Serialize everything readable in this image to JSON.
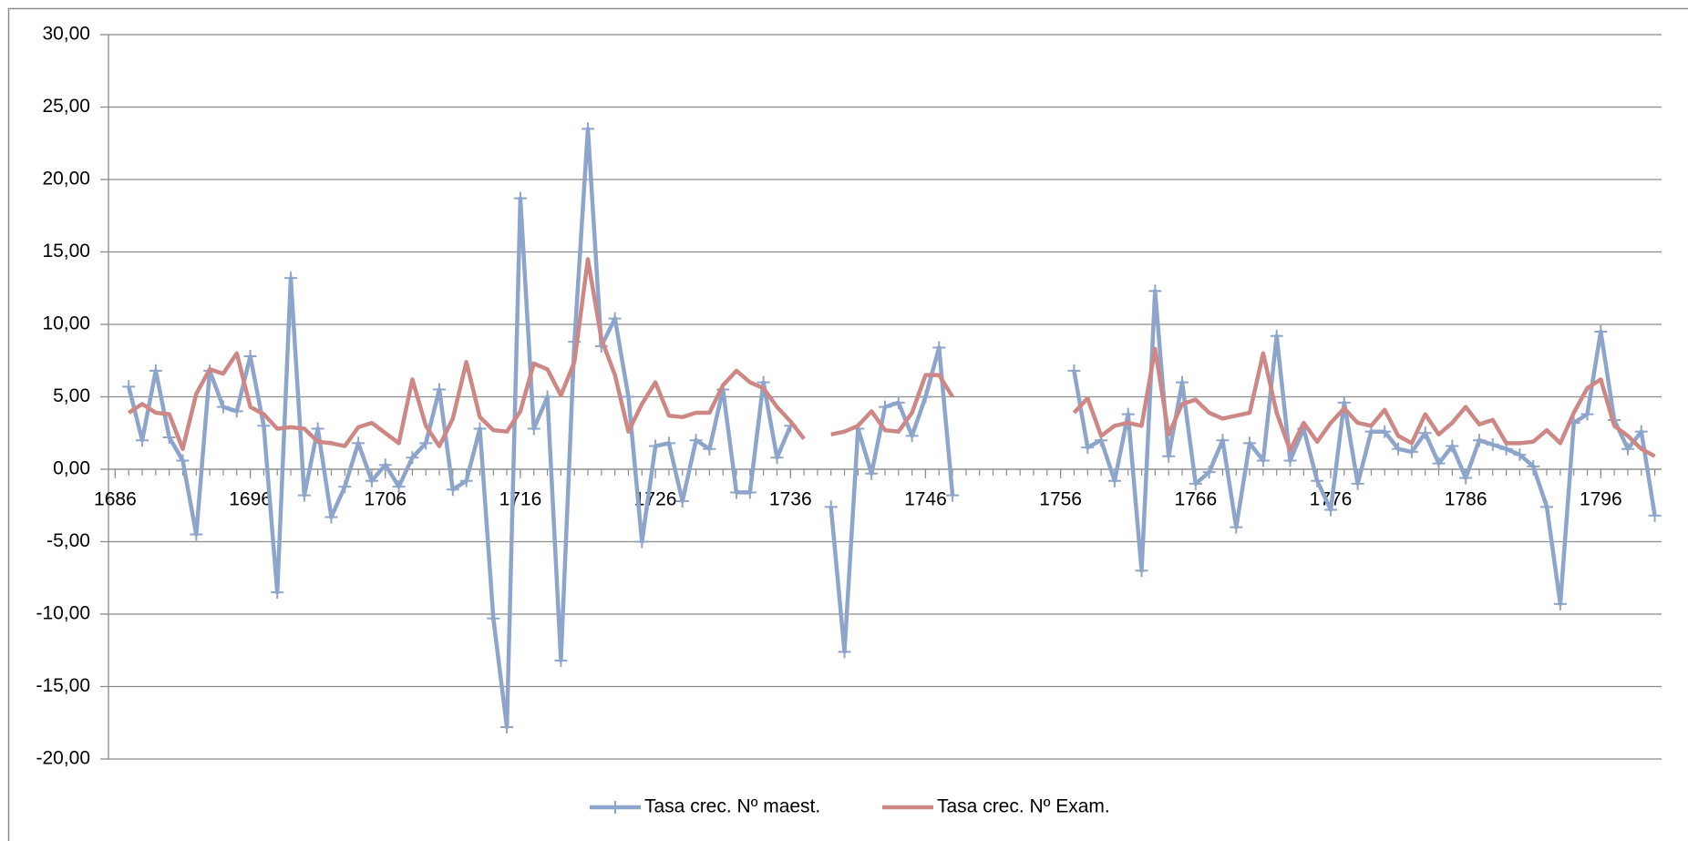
{
  "chart_data": {
    "type": "line",
    "x": [
      1686,
      1687,
      1688,
      1689,
      1690,
      1691,
      1692,
      1693,
      1694,
      1695,
      1696,
      1697,
      1698,
      1699,
      1700,
      1701,
      1702,
      1703,
      1704,
      1705,
      1706,
      1707,
      1708,
      1709,
      1710,
      1711,
      1712,
      1713,
      1714,
      1715,
      1716,
      1717,
      1718,
      1719,
      1720,
      1721,
      1722,
      1723,
      1724,
      1725,
      1726,
      1727,
      1728,
      1729,
      1730,
      1731,
      1732,
      1733,
      1734,
      1735,
      1736,
      1737,
      1738,
      1739,
      1740,
      1741,
      1742,
      1743,
      1744,
      1745,
      1746,
      1747,
      1748,
      1749,
      1750,
      1751,
      1752,
      1753,
      1754,
      1755,
      1756,
      1757,
      1758,
      1759,
      1760,
      1761,
      1762,
      1763,
      1764,
      1765,
      1766,
      1767,
      1768,
      1769,
      1770,
      1771,
      1772,
      1773,
      1774,
      1775,
      1776,
      1777,
      1778,
      1779,
      1780,
      1781,
      1782,
      1783,
      1784,
      1785,
      1786,
      1787,
      1788,
      1789,
      1790,
      1791,
      1792,
      1793,
      1794,
      1795,
      1796,
      1797,
      1798,
      1799,
      1800
    ],
    "xlim": [
      1685.5,
      1800.5
    ],
    "xticks": [
      1686,
      1696,
      1706,
      1716,
      1726,
      1736,
      1746,
      1756,
      1766,
      1776,
      1786,
      1796
    ],
    "ylim": [
      -20,
      30
    ],
    "yticks": [
      {
        "value": -20,
        "label": "-20,00"
      },
      {
        "value": -15,
        "label": "-15,00"
      },
      {
        "value": -10,
        "label": "-10,00"
      },
      {
        "value": -5,
        "label": "-5,00"
      },
      {
        "value": 0,
        "label": "0,00"
      },
      {
        "value": 5,
        "label": "5,00"
      },
      {
        "value": 10,
        "label": "10,00"
      },
      {
        "value": 15,
        "label": "15,00"
      },
      {
        "value": 20,
        "label": "20,00"
      },
      {
        "value": 25,
        "label": "25,00"
      },
      {
        "value": 30,
        "label": "30,00"
      }
    ],
    "grid": true,
    "legend": "bottom",
    "series": [
      {
        "name": "Tasa crec. Nº maest.",
        "color": "#8ea5cb",
        "marker": "plus",
        "values": [
          null,
          5.7,
          2.0,
          6.8,
          2.2,
          0.6,
          -4.5,
          6.8,
          4.3,
          4.0,
          7.8,
          3.0,
          -8.5,
          13.2,
          -1.8,
          2.8,
          -3.3,
          -1.2,
          1.8,
          -0.8,
          0.3,
          -1.2,
          0.8,
          1.8,
          5.5,
          -1.4,
          -0.8,
          2.8,
          -10.3,
          -17.8,
          18.7,
          2.8,
          5.0,
          -13.2,
          8.8,
          23.5,
          8.5,
          10.4,
          5.0,
          -5.0,
          1.6,
          1.8,
          -2.2,
          2.0,
          1.4,
          5.5,
          -1.6,
          -1.6,
          6.0,
          0.8,
          3.0,
          null,
          null,
          -2.6,
          -12.6,
          2.8,
          -0.3,
          4.3,
          4.6,
          2.3,
          5.0,
          8.4,
          -1.8,
          null,
          null,
          null,
          null,
          null,
          null,
          null,
          null,
          6.8,
          1.5,
          2.0,
          -0.8,
          3.8,
          -7.0,
          12.3,
          0.9,
          6.0,
          -1.0,
          -0.2,
          2.0,
          -4.0,
          1.8,
          0.6,
          9.2,
          0.6,
          2.8,
          -0.8,
          -2.8,
          4.6,
          -1.0,
          2.6,
          2.6,
          1.4,
          1.2,
          2.5,
          0.4,
          1.6,
          -0.6,
          2.0,
          1.7,
          1.4,
          1.0,
          0.2,
          -2.6,
          -9.3,
          3.2,
          3.8,
          9.5,
          3.4,
          1.4,
          2.6,
          -3.2
        ]
      },
      {
        "name": "Tasa crec. Nº Exam.",
        "color": "#cd8886",
        "marker": "none",
        "values": [
          null,
          3.9,
          4.5,
          3.9,
          3.8,
          1.4,
          5.2,
          6.9,
          6.6,
          8.0,
          4.3,
          3.8,
          2.8,
          2.9,
          2.8,
          1.9,
          1.8,
          1.6,
          2.9,
          3.2,
          2.5,
          1.8,
          6.2,
          3.0,
          1.6,
          3.5,
          7.4,
          3.6,
          2.7,
          2.6,
          4.0,
          7.3,
          6.9,
          5.1,
          7.4,
          14.5,
          9.0,
          6.5,
          2.6,
          4.5,
          6.0,
          3.7,
          3.6,
          3.9,
          3.9,
          5.8,
          6.8,
          6.0,
          5.6,
          4.3,
          3.3,
          2.1,
          null,
          2.4,
          2.6,
          3.0,
          4.0,
          2.7,
          2.6,
          3.9,
          6.5,
          6.5,
          5.0,
          null,
          null,
          null,
          null,
          null,
          null,
          null,
          null,
          3.9,
          4.9,
          2.3,
          3.0,
          3.2,
          3.0,
          8.3,
          2.4,
          4.5,
          4.8,
          3.9,
          3.5,
          3.7,
          3.9,
          8.0,
          3.9,
          1.3,
          3.2,
          1.9,
          3.2,
          4.2,
          3.2,
          3.0,
          4.1,
          2.3,
          1.8,
          3.8,
          2.4,
          3.2,
          4.3,
          3.1,
          3.4,
          1.8,
          1.8,
          1.9,
          2.7,
          1.8,
          3.9,
          5.6,
          6.2,
          3.0,
          2.3,
          1.4,
          0.9
        ]
      }
    ]
  }
}
